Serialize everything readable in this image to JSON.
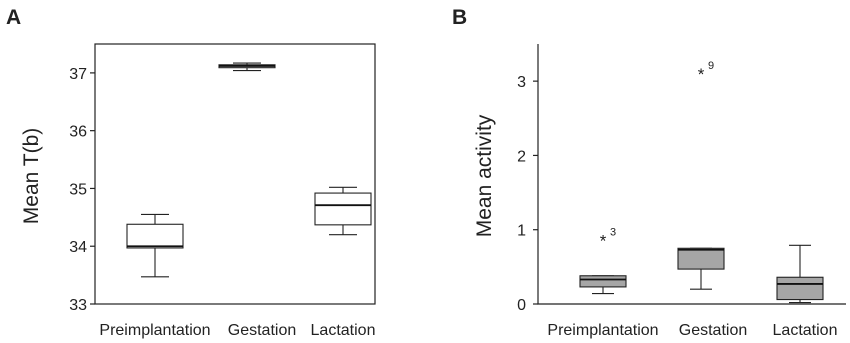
{
  "panels": [
    {
      "letter": "A",
      "chart_data": {
        "type": "box",
        "ylabel": "Mean T(b)",
        "ylim": [
          33,
          37.5
        ],
        "yticks": [
          33,
          34,
          35,
          36,
          37
        ],
        "categories": [
          "Preimplantation",
          "Gestation",
          "Lactation"
        ],
        "box_fill": "#ffffff",
        "boxes": [
          {
            "category": "Preimplantation",
            "whisker_low": 33.47,
            "q1": 33.97,
            "median": 34.0,
            "q3": 34.38,
            "whisker_high": 34.55
          },
          {
            "category": "Gestation",
            "whisker_low": 37.04,
            "q1": 37.09,
            "median": 37.12,
            "q3": 37.14,
            "whisker_high": 37.17
          },
          {
            "category": "Lactation",
            "whisker_low": 34.2,
            "q1": 34.37,
            "median": 34.71,
            "q3": 34.92,
            "whisker_high": 35.02
          }
        ],
        "outliers": []
      }
    },
    {
      "letter": "B",
      "chart_data": {
        "type": "box",
        "ylabel": "Mean activity",
        "ylim": [
          0,
          3.5
        ],
        "yticks": [
          0,
          1,
          2,
          3
        ],
        "categories": [
          "Preimplantation",
          "Gestation",
          "Lactation"
        ],
        "box_fill": "#a6a6a6",
        "boxes": [
          {
            "category": "Preimplantation",
            "whisker_low": 0.14,
            "q1": 0.23,
            "median": 0.33,
            "q3": 0.38,
            "whisker_high": 0.38
          },
          {
            "category": "Gestation",
            "whisker_low": 0.2,
            "q1": 0.47,
            "median": 0.73,
            "q3": 0.75,
            "whisker_high": 0.75
          },
          {
            "category": "Lactation",
            "whisker_low": 0.02,
            "q1": 0.06,
            "median": 0.27,
            "q3": 0.36,
            "whisker_high": 0.79
          }
        ],
        "outliers": [
          {
            "category": "Preimplantation",
            "value": 0.91,
            "marker": "*",
            "id": "3"
          },
          {
            "category": "Gestation",
            "value": 3.15,
            "marker": "*",
            "id": "9"
          }
        ]
      }
    }
  ]
}
